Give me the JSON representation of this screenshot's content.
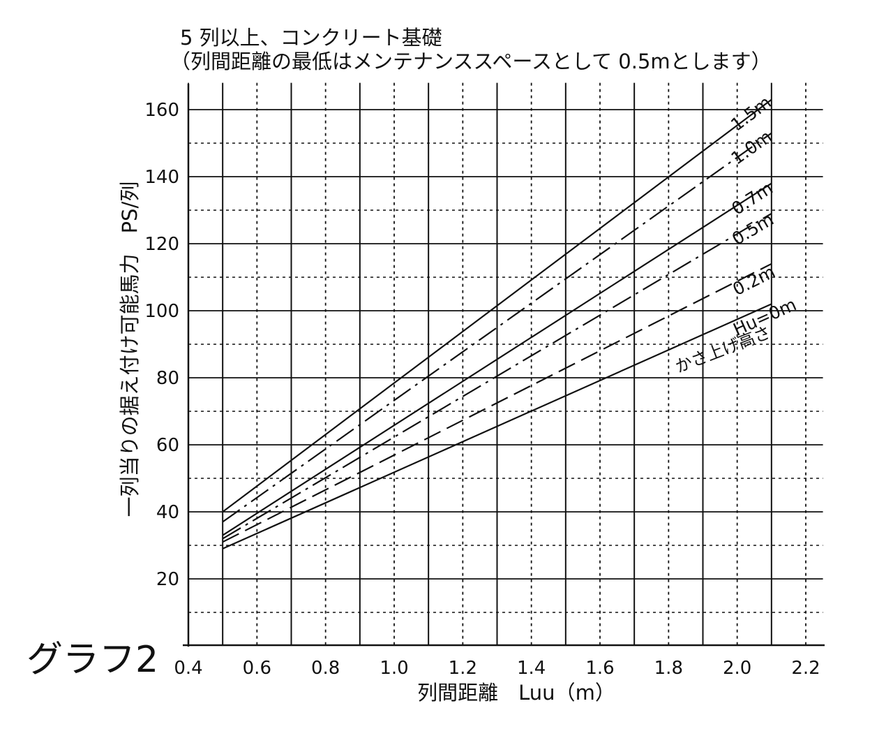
{
  "chart_data": {
    "type": "line",
    "title": "5 列以上、コンクリート基礎",
    "subtitle": "（列間距離の最低はメンテナンススペースとして 0.5mとします）",
    "graph_label": "グラフ2",
    "xlabel": "列間距離　Luu（m）",
    "ylabel": "一列当りの据え付け可能馬力　PS/列",
    "xlim": [
      0.4,
      2.25
    ],
    "ylim": [
      0,
      168
    ],
    "x_ticks": [
      "0.4",
      "0.6",
      "0.8",
      "1.0",
      "1.2",
      "1.4",
      "1.6",
      "1.8",
      "2.0",
      "2.2"
    ],
    "y_ticks": [
      "20",
      "40",
      "60",
      "80",
      "100",
      "120",
      "140",
      "160"
    ],
    "grid": true,
    "series_group_label": "かさ上げ高さ",
    "series": [
      {
        "name": "1.5m",
        "dash": "solid",
        "x": [
          0.5,
          2.1
        ],
        "y": [
          40,
          163
        ]
      },
      {
        "name": "1.0m",
        "dash": "dashdot",
        "x": [
          0.5,
          2.1
        ],
        "y": [
          37,
          153
        ]
      },
      {
        "name": "0.7m",
        "dash": "solid",
        "x": [
          0.5,
          2.1
        ],
        "y": [
          33,
          138
        ]
      },
      {
        "name": "0.5m",
        "dash": "dashdot",
        "x": [
          0.5,
          2.1
        ],
        "y": [
          32,
          129
        ]
      },
      {
        "name": "0.2m",
        "dash": "dash",
        "x": [
          0.5,
          2.1
        ],
        "y": [
          31,
          114
        ]
      },
      {
        "name": "Hu=0m",
        "dash": "solid",
        "x": [
          0.5,
          2.1
        ],
        "y": [
          29,
          102
        ]
      }
    ]
  }
}
